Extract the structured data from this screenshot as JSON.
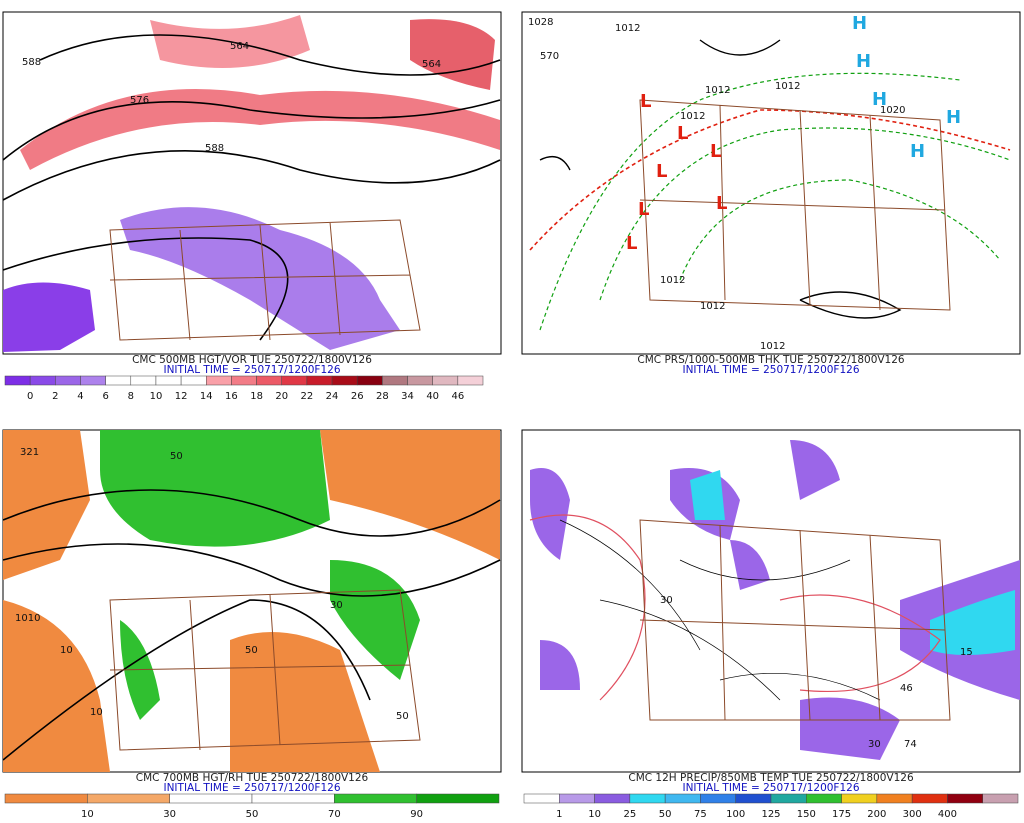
{
  "panels": [
    {
      "caption": "CMC 500MB HGT/VOR TUE 250722/1800V126",
      "initial": "INITIAL TIME = 250717/1200F126",
      "colorbar": {
        "labels": [
          0,
          2,
          4,
          6,
          8,
          10,
          12,
          14,
          16,
          18,
          20,
          22,
          24,
          26,
          28,
          34,
          40,
          46
        ],
        "colors": [
          "#7d2ee6",
          "#8a4ae8",
          "#9b66e8",
          "#ad82ec",
          "#ffffff",
          "#ffffff",
          "#ffffff",
          "#ffffff",
          "#f9a0a8",
          "#f27c87",
          "#ec5a67",
          "#e03846",
          "#c81c2a",
          "#a80c18",
          "#880010",
          "#b07880",
          "#c898a0",
          "#e0b8c0",
          "#f4d0d8"
        ]
      },
      "labels": [
        "588",
        "576",
        "564",
        "588",
        "564"
      ]
    },
    {
      "caption": "CMC PRS/1000-500MB THK TUE 250722/1800V126",
      "initial": "INITIAL TIME = 250717/1200F126",
      "labels": [
        "1028",
        "1012",
        "570",
        "1012",
        "1012",
        "1012",
        "1012",
        "1012",
        "1020",
        "1012",
        "H",
        "H",
        "H",
        "H",
        "H",
        "L",
        "L",
        "L",
        "L",
        "L",
        "L",
        "L"
      ]
    },
    {
      "caption": "CMC 700MB HGT/RH TUE 250722/1800V126",
      "initial": "INITIAL TIME = 250717/1200F126",
      "colorbar": {
        "labels": [
          10,
          30,
          50,
          70,
          90
        ],
        "colors": [
          "#f08a40",
          "#f4a868",
          "#ffffff",
          "#ffffff",
          "#30c030",
          "#10a010"
        ]
      },
      "labels": [
        "321",
        "1010",
        "50",
        "10",
        "50",
        "30",
        "10",
        "50"
      ]
    },
    {
      "caption": "CMC 12H PRECIP/850MB TEMP TUE 250722/1800V126",
      "initial": "INITIAL TIME = 250717/1200F126",
      "colorbar": {
        "labels": [
          1,
          10,
          25,
          50,
          75,
          100,
          125,
          150,
          175,
          200,
          300,
          400
        ],
        "colors": [
          "#ffffff",
          "#b89ae8",
          "#8a5ce0",
          "#30d8f0",
          "#40b8f0",
          "#3080e8",
          "#2050d0",
          "#20a8a0",
          "#30c030",
          "#f0d020",
          "#f08020",
          "#e03010",
          "#900010",
          "#c8a0b0"
        ]
      },
      "labels": [
        "30",
        "74",
        "46",
        "30",
        "15"
      ]
    }
  ]
}
